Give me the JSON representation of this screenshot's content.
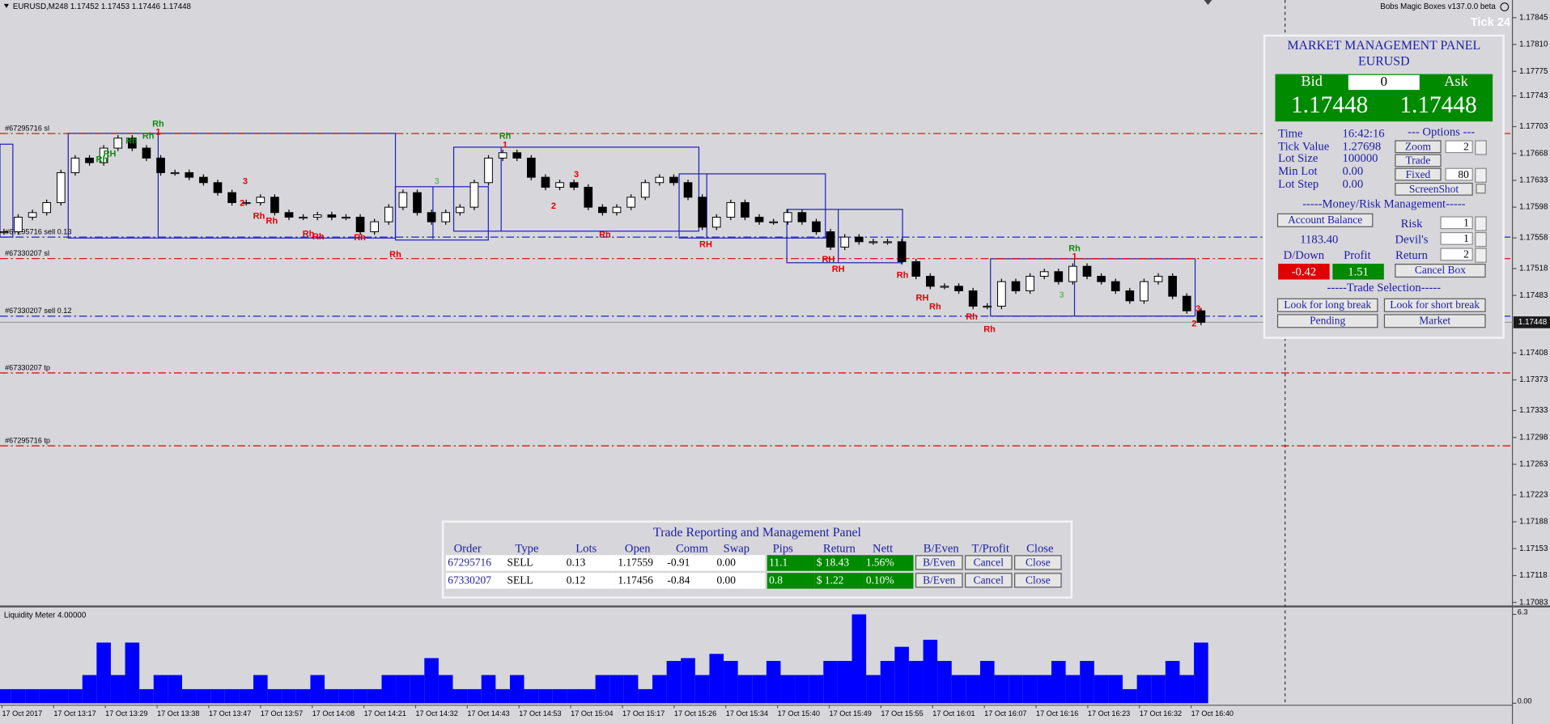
{
  "header": {
    "symbol_line": "EURUSD,M248  1.17452 1.17453 1.17446 1.17448",
    "indicator": "Bobs Magic Boxes v137.0.0 beta",
    "tick": "Tick 24"
  },
  "chart_data": [
    {
      "type": "candlestick",
      "values": [
        1.17566,
        1.17585,
        1.17591,
        1.17604,
        1.17643,
        1.17662,
        1.17656,
        1.17675,
        1.17688,
        1.17675,
        1.17662,
        1.17643,
        1.17643,
        1.17637,
        1.1763,
        1.17617,
        1.17604,
        1.17604,
        1.17611,
        1.17591,
        1.17585,
        1.17585,
        1.17588,
        1.17585,
        1.17585,
        1.17566,
        1.17579,
        1.17598,
        1.17617,
        1.17591,
        1.17579,
        1.17591,
        1.17598,
        1.1763,
        1.17662,
        1.17669,
        1.17662,
        1.17637,
        1.17624,
        1.1763,
        1.17624,
        1.17598,
        1.17591,
        1.17598,
        1.17611,
        1.1763,
        1.17637,
        1.1763,
        1.17611,
        1.17572,
        1.17585,
        1.17604,
        1.17585,
        1.17579,
        1.17579,
        1.17591,
        1.17579,
        1.17566,
        1.17546,
        1.17559,
        1.17553,
        1.17553,
        1.17553,
        1.17527,
        1.17508,
        1.17495,
        1.17495,
        1.17489,
        1.17469,
        1.17469,
        1.17501,
        1.17489,
        1.17508,
        1.17514,
        1.17501,
        1.17521,
        1.17508,
        1.17501,
        1.17489,
        1.17476,
        1.17501,
        1.17508,
        1.17482,
        1.17463,
        1.17448
      ],
      "up_color": "#ffffff",
      "down_color": "#000000",
      "last": 1.17448,
      "ylim": [
        1.17079,
        1.17868
      ],
      "yticks": [
        1.17845,
        {
          "value": 1.1781,
          "label": "1.17810"
        },
        1.17775,
        1.17743,
        1.17703,
        1.17668,
        1.17633,
        1.17598,
        1.17558,
        1.17518,
        1.17483,
        1.17408,
        1.17373,
        1.17333,
        1.17298,
        1.17263,
        1.17223,
        1.17188,
        1.17153,
        1.17118,
        1.17083
      ]
    },
    {
      "type": "bar",
      "title": "Liquidity Meter 4.00000",
      "color": "#0000ff",
      "values": [
        1,
        1,
        1,
        1,
        1,
        1,
        2,
        4.3,
        2,
        4.3,
        1,
        2,
        2,
        1,
        1,
        1,
        1,
        1,
        2,
        1,
        1,
        1,
        2,
        1,
        1,
        1,
        1,
        2,
        2,
        2,
        3.2,
        2,
        1,
        1,
        2,
        1,
        2,
        1,
        1,
        1,
        1,
        1,
        2,
        2,
        2,
        1,
        2,
        3,
        3.2,
        2,
        3.5,
        3,
        2,
        2,
        3,
        2,
        2,
        2,
        3,
        3,
        6.3,
        2,
        3,
        4,
        3,
        4.5,
        3,
        2,
        2,
        3,
        2,
        2,
        2,
        2,
        3,
        2,
        3,
        2,
        2,
        1,
        2,
        2,
        3,
        2,
        4.3
      ],
      "ylim": [
        0,
        6.3
      ],
      "yticks": [
        {
          "value": 0,
          "label": "0.00"
        },
        6.3
      ],
      "time_labels": [
        "17 Oct 2017",
        "17 Oct 13:17",
        "17 Oct 13:29",
        "17 Oct 13:38",
        "17 Oct 13:47",
        "17 Oct 13:57",
        "17 Oct 14:08",
        "17 Oct 14:21",
        "17 Oct 14:32",
        "17 Oct 14:43",
        "17 Oct 14:53",
        "17 Oct 15:04",
        "17 Oct 15:17",
        "17 Oct 15:26",
        "17 Oct 15:34",
        "17 Oct 15:40",
        "17 Oct 15:49",
        "17 Oct 15:55",
        "17 Oct 16:01",
        "17 Oct 16:07",
        "17 Oct 16:16",
        "17 Oct 16:23",
        "17 Oct 16:32",
        "17 Oct 16:40"
      ]
    }
  ],
  "order_lines": [
    {
      "label": "#67295716 sl",
      "price": 1.17694,
      "color": "#e00000"
    },
    {
      "label": "#67295716 sell 0.13",
      "price": 1.17559,
      "color": "#2020d0"
    },
    {
      "label": "#67330207 sl",
      "price": 1.17531,
      "color": "#e00000"
    },
    {
      "label": "#67330207 sell 0.12",
      "price": 1.17456,
      "color": "#2020d0"
    },
    {
      "label": "#67330207 tp",
      "price": 1.17382,
      "color": "#e00000"
    },
    {
      "label": "#67295716 tp",
      "price": 1.17287,
      "color": "#e00000"
    }
  ],
  "annotations": [
    {
      "text": "Rh",
      "color": "#108a10"
    },
    {
      "text": "1",
      "color": "#e00000"
    },
    {
      "text": "Rh",
      "color": "#108a10"
    },
    {
      "text": "Rh",
      "color": "#108a10"
    },
    {
      "text": "RH",
      "color": "#108a10"
    },
    {
      "text": "Rh",
      "color": "#108a10"
    },
    {
      "text": "3",
      "color": "#e00000"
    },
    {
      "text": "2",
      "color": "#e00000"
    },
    {
      "text": "Rh",
      "color": "#e00000"
    },
    {
      "text": "Rh",
      "color": "#e00000"
    },
    {
      "text": "Rh",
      "color": "#e00000"
    },
    {
      "text": "Rh",
      "color": "#e00000"
    },
    {
      "text": "Rh",
      "color": "#e00000"
    },
    {
      "text": "Rh",
      "color": "#e00000"
    },
    {
      "text": "3",
      "color": "#6ab86a"
    },
    {
      "text": "Rh",
      "color": "#108a10"
    },
    {
      "text": "1",
      "color": "#e00000"
    },
    {
      "text": "3",
      "color": "#e00000"
    },
    {
      "text": "2",
      "color": "#e00000"
    },
    {
      "text": "Rh",
      "color": "#e00000"
    },
    {
      "text": "RH",
      "color": "#e00000"
    },
    {
      "text": "RH",
      "color": "#e00000"
    },
    {
      "text": "RH",
      "color": "#e00000"
    },
    {
      "text": "Rh",
      "color": "#e00000"
    },
    {
      "text": "RH",
      "color": "#e00000"
    },
    {
      "text": "Rh",
      "color": "#e00000"
    },
    {
      "text": "Rh",
      "color": "#e00000"
    },
    {
      "text": "Rh",
      "color": "#e00000"
    },
    {
      "text": "Rh",
      "color": "#108a10"
    },
    {
      "text": "1",
      "color": "#e00000"
    },
    {
      "text": "3",
      "color": "#6ab86a"
    },
    {
      "text": "3",
      "color": "#e00000"
    },
    {
      "text": "2",
      "color": "#e00000"
    }
  ],
  "market_panel": {
    "title": "MARKET MANAGEMENT PANEL",
    "symbol": "EURUSD",
    "bid_label": "Bid",
    "spread": "0",
    "ask_label": "Ask",
    "bid": "1.17448",
    "ask": "1.17448",
    "info": [
      [
        "Time",
        "16:42:16"
      ],
      [
        "Tick Value",
        "1.27698"
      ],
      [
        "Lot Size",
        "100000"
      ],
      [
        "Min Lot",
        "0.00"
      ],
      [
        "Lot Step",
        "0.00"
      ]
    ],
    "options_title": "--- Options ---",
    "zoom": "Zoom",
    "zoom_value": "2",
    "trade": "Trade",
    "fixed": "Fixed",
    "fixed_value": "80",
    "screenshot": "ScreenShot",
    "money_title": "-----Money/Risk Management-----",
    "account_balance": "Account Balance",
    "balance": "1183.40",
    "risk": [
      [
        "Risk",
        "1"
      ],
      [
        "Devil's",
        "1"
      ],
      [
        "Return",
        "2"
      ]
    ],
    "drawdown_label": "D/Down",
    "profit_label": "Profit",
    "drawdown": "-0.42",
    "profit": "1.51",
    "cancel_box": "Cancel Box",
    "trade_selection_title": "-----Trade Selection-----",
    "long_break": "Look for long break",
    "short_break": "Look for short break",
    "pending": "Pending",
    "market": "Market"
  },
  "trade_panel": {
    "title": "Trade Reporting and Management Panel",
    "headers": [
      "Order",
      "Type",
      "Lots",
      "Open",
      "Comm",
      "Swap",
      "Pips",
      "Return",
      "Nett",
      "B/Even",
      "T/Profit",
      "Close"
    ],
    "rows": [
      [
        "67295716",
        "SELL",
        "0.13",
        "1.17559",
        "-0.91",
        "0.00",
        "11.1",
        "$ 18.43",
        "1.56%",
        "B/Even",
        "Cancel",
        "Close"
      ],
      [
        "67330207",
        "SELL",
        "0.12",
        "1.17456",
        "-0.84",
        "0.00",
        "0.8",
        "$ 1.22",
        "0.10%",
        "B/Even",
        "Cancel",
        "Close"
      ]
    ]
  }
}
